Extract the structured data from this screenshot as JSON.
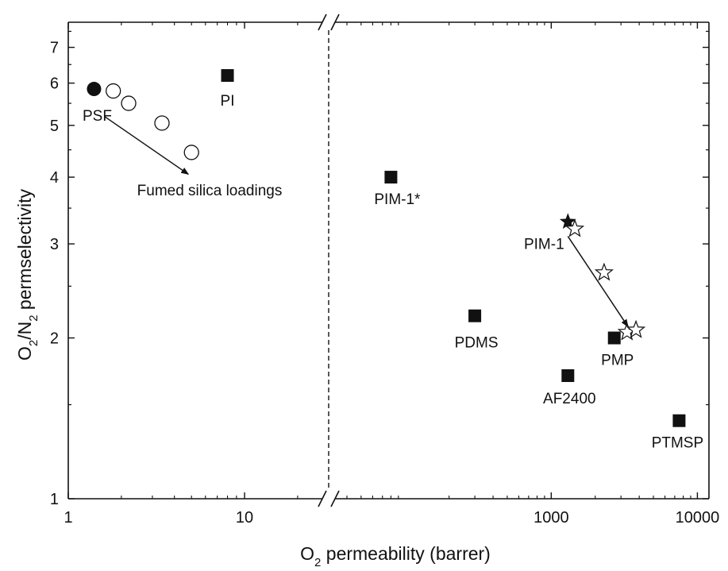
{
  "chart_data": {
    "type": "scatter",
    "xlabel": {
      "main": "O",
      "sub": "2",
      "rest": " permeability (barrer)"
    },
    "ylabel": {
      "p1": "O",
      "s1": "2",
      "p2": "/N",
      "s2": "2",
      "p3": " permselectivity"
    },
    "x_scale": "log (broken axis)",
    "y_scale": "log",
    "ylim": [
      1,
      7.8
    ],
    "x_segments": [
      {
        "range": [
          1,
          30
        ],
        "ticks": [
          1,
          10
        ],
        "tick_labels": [
          "1",
          "10"
        ]
      },
      {
        "range": [
          30,
          12000
        ],
        "ticks": [
          1000,
          10000
        ],
        "tick_labels": [
          "1000",
          "10000"
        ]
      }
    ],
    "y_ticks": [
      1,
      2,
      3,
      4,
      5,
      6,
      7
    ],
    "y_tick_labels": [
      "1",
      "2",
      "3",
      "4",
      "5",
      "6",
      "7"
    ],
    "axis_break_at": 30,
    "grid": false,
    "series": [
      {
        "marker": "filled-square",
        "points": [
          {
            "x": 8,
            "y": 6.2,
            "label": "PI"
          },
          {
            "x": 80,
            "y": 4.0,
            "label": "PIM-1*"
          },
          {
            "x": 300,
            "y": 2.2,
            "label": "PDMS"
          },
          {
            "x": 1300,
            "y": 1.7,
            "label": "AF2400"
          },
          {
            "x": 2700,
            "y": 2.0,
            "label": "PMP"
          },
          {
            "x": 7500,
            "y": 1.4,
            "label": "PTMSP"
          }
        ]
      },
      {
        "marker": "filled-circle",
        "points": [
          {
            "x": 1.4,
            "y": 5.85,
            "label": "PSF"
          }
        ]
      },
      {
        "marker": "open-circle",
        "points": [
          {
            "x": 1.8,
            "y": 5.8
          },
          {
            "x": 2.2,
            "y": 5.5
          },
          {
            "x": 3.4,
            "y": 5.05
          },
          {
            "x": 5.0,
            "y": 4.45
          }
        ]
      },
      {
        "marker": "filled-star",
        "points": [
          {
            "x": 1300,
            "y": 3.3,
            "label": "PIM-1"
          }
        ]
      },
      {
        "marker": "open-star",
        "points": [
          {
            "x": 1450,
            "y": 3.2
          },
          {
            "x": 2300,
            "y": 2.65
          },
          {
            "x": 3300,
            "y": 2.05
          },
          {
            "x": 3800,
            "y": 2.07
          }
        ]
      }
    ],
    "annotations": [
      {
        "text": "Fumed silica loadings",
        "arrow_from": {
          "x": 1.6,
          "y": 5.2
        },
        "arrow_to": {
          "x": 4.8,
          "y": 4.05
        }
      },
      {
        "text": "",
        "arrow_from": {
          "x": 1300,
          "y": 3.1
        },
        "arrow_to": {
          "x": 3350,
          "y": 2.1
        }
      }
    ]
  }
}
